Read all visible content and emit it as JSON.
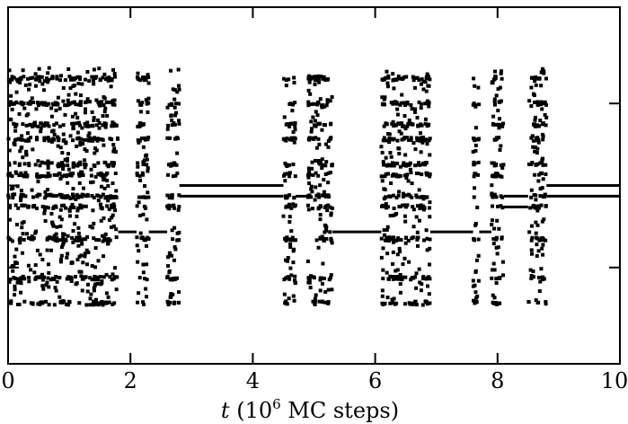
{
  "chart_data": {
    "type": "scatter",
    "title": "",
    "xlabel": {
      "var": "t",
      "open": " (10",
      "exp": "6",
      "close": " MC steps)"
    },
    "ylabel": "",
    "xlim": [
      0,
      10
    ],
    "ylim": [
      0,
      1
    ],
    "x_ticks": [
      0,
      2,
      4,
      6,
      8,
      10
    ],
    "x_tick_labels": [
      "0",
      "2",
      "4",
      "6",
      "8",
      "10"
    ],
    "y_ticks": [
      0.27,
      0.5,
      0.73
    ],
    "y_tick_labels": [
      "",
      "",
      ""
    ],
    "grid": false,
    "legend": "none",
    "marker_color": "#000000",
    "y_levels": [
      0.17,
      0.24,
      0.35,
      0.44,
      0.47,
      0.53,
      0.56,
      0.63,
      0.67,
      0.73,
      0.8
    ],
    "burst_intervals": [
      [
        0.0,
        1.8
      ],
      [
        2.1,
        2.3
      ],
      [
        2.6,
        2.8
      ],
      [
        4.5,
        4.7
      ],
      [
        4.9,
        5.3
      ],
      [
        6.1,
        6.9
      ],
      [
        7.6,
        7.7
      ],
      [
        7.9,
        8.1
      ],
      [
        8.5,
        8.8
      ]
    ],
    "plateaus": [
      {
        "x": [
          1.8,
          2.1
        ],
        "y": 0.37
      },
      {
        "x": [
          2.3,
          2.6
        ],
        "y": 0.37
      },
      {
        "x": [
          2.8,
          4.5
        ],
        "y": 0.47
      },
      {
        "x": [
          2.8,
          4.5
        ],
        "y": 0.5
      },
      {
        "x": [
          4.7,
          4.9
        ],
        "y": 0.47
      },
      {
        "x": [
          5.3,
          6.1
        ],
        "y": 0.37
      },
      {
        "x": [
          6.9,
          7.6
        ],
        "y": 0.37
      },
      {
        "x": [
          7.7,
          7.9
        ],
        "y": 0.37
      },
      {
        "x": [
          8.1,
          8.5
        ],
        "y": 0.44
      },
      {
        "x": [
          8.1,
          8.5
        ],
        "y": 0.47
      },
      {
        "x": [
          8.8,
          10.0
        ],
        "y": 0.47
      },
      {
        "x": [
          8.8,
          10.0
        ],
        "y": 0.5
      }
    ]
  }
}
